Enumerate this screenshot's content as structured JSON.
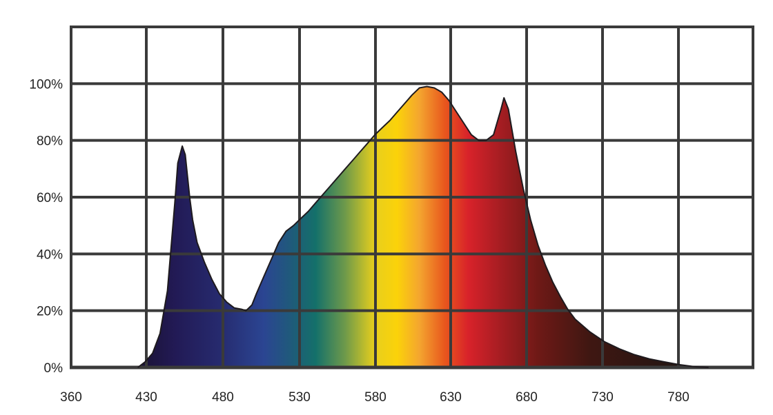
{
  "colors": {
    "grid": "#3a3a3a",
    "outline": "#1e1a1e",
    "spectrum_stops": [
      {
        "nm": 405,
        "color": "#1a1233"
      },
      {
        "nm": 430,
        "color": "#221a55"
      },
      {
        "nm": 460,
        "color": "#262a6e"
      },
      {
        "nm": 490,
        "color": "#2b4592"
      },
      {
        "nm": 510,
        "color": "#1e5c78"
      },
      {
        "nm": 525,
        "color": "#14706a"
      },
      {
        "nm": 545,
        "color": "#6f9a4a"
      },
      {
        "nm": 565,
        "color": "#e8cf1c"
      },
      {
        "nm": 580,
        "color": "#fbd20a"
      },
      {
        "nm": 595,
        "color": "#f4a52f"
      },
      {
        "nm": 612,
        "color": "#e8571d"
      },
      {
        "nm": 628,
        "color": "#d8222a"
      },
      {
        "nm": 650,
        "color": "#a51d22"
      },
      {
        "nm": 675,
        "color": "#6e1916"
      },
      {
        "nm": 710,
        "color": "#3f1712"
      },
      {
        "nm": 760,
        "color": "#281612"
      },
      {
        "nm": 790,
        "color": "#1e1614"
      }
    ]
  },
  "chart_data": {
    "type": "area",
    "title": "",
    "xlabel": "",
    "ylabel": "",
    "xlim": [
      360,
      820
    ],
    "ylim": [
      0,
      120
    ],
    "grid": true,
    "x_ticks": [
      "360",
      "430",
      "480",
      "530",
      "580",
      "630",
      "680",
      "730",
      "780"
    ],
    "y_ticks": [
      "0%",
      "20%",
      "40%",
      "60%",
      "80%",
      "100%"
    ],
    "series": [
      {
        "x": [
          405,
          410,
          415,
          420,
          425,
          430,
          432,
          435,
          437,
          440,
          442,
          445,
          450,
          455,
          460,
          465,
          470,
          475,
          478,
          480,
          482,
          485,
          490,
          495,
          500,
          505,
          510,
          515,
          520,
          525,
          530,
          535,
          540,
          545,
          550,
          555,
          560,
          565,
          570,
          575,
          580,
          585,
          590,
          595,
          600,
          605,
          610,
          615,
          620,
          625,
          630,
          635,
          640,
          645,
          650,
          652,
          655,
          660,
          665,
          670,
          675,
          680,
          685,
          690,
          695,
          700,
          710,
          720,
          730,
          740,
          750,
          760,
          770,
          780,
          790
        ],
        "y": [
          0,
          2,
          5,
          12,
          27,
          58,
          72,
          78,
          75,
          60,
          52,
          44,
          37,
          31,
          26,
          23,
          21,
          20.5,
          20,
          21,
          22,
          26,
          32,
          38,
          44,
          48,
          50,
          52.5,
          55,
          58,
          61,
          64,
          67,
          70,
          73,
          76,
          79,
          82,
          84.5,
          87,
          90,
          93,
          96,
          98.5,
          99,
          98.5,
          97,
          94,
          90,
          86,
          82,
          80,
          80,
          82,
          91,
          95,
          91,
          76,
          63,
          52,
          43,
          36,
          30,
          25,
          20.5,
          17,
          12.5,
          9,
          6.5,
          4.5,
          3,
          2,
          1,
          0.3,
          0
        ]
      }
    ]
  }
}
